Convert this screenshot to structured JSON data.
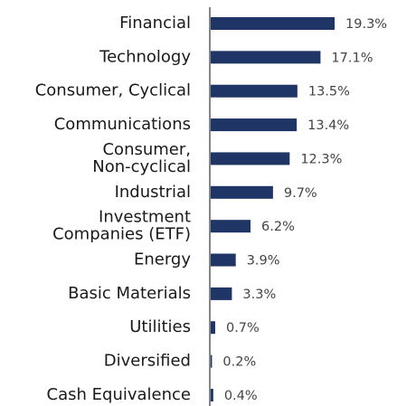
{
  "chart_data": {
    "type": "bar",
    "orientation": "horizontal",
    "categories": [
      "Financial",
      "Technology",
      "Consumer, Cyclical",
      "Communications",
      [
        "Consumer,",
        "Non-cyclical"
      ],
      "Industrial",
      [
        "Investment",
        "Companies (ETF)"
      ],
      "Energy",
      "Basic Materials",
      "Utilities",
      "Diversified",
      "Cash Equivalence"
    ],
    "values": [
      19.3,
      17.1,
      13.5,
      13.4,
      12.3,
      9.7,
      6.2,
      3.9,
      3.3,
      0.7,
      0.2,
      0.4
    ],
    "value_labels": [
      "19.3%",
      "17.1%",
      "13.5%",
      "13.4%",
      "12.3%",
      "9.7%",
      "6.2%",
      "3.9%",
      "3.3%",
      "0.7%",
      "0.2%",
      "0.4%"
    ],
    "color": "#1f3566"
  }
}
